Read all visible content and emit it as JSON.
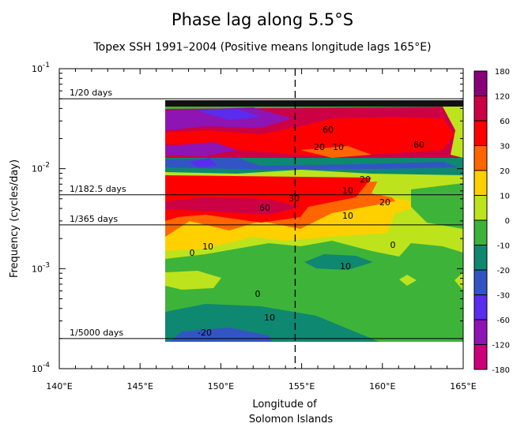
{
  "chart_data": {
    "type": "heatmap",
    "title": "Phase lag along 5.5°S",
    "subtitle": "Topex SSH 1991–2004 (Positive means longitude lags 165°E)",
    "xlabel": "Longitude of",
    "xlabel2": "Solomon Islands",
    "ylabel": "Frequency (cycles/day)",
    "xlim": [
      140,
      165
    ],
    "ylim": [
      0.0001,
      0.1
    ],
    "yscale": "log",
    "x_ticks": [
      "140°E",
      "145°E",
      "150°E",
      "155°E",
      "160°E",
      "165°E"
    ],
    "y_ticks": [
      {
        "base": "10",
        "exp": "-1"
      },
      {
        "base": "10",
        "exp": "-2"
      },
      {
        "base": "10",
        "exp": "-3"
      },
      {
        "base": "10",
        "exp": "-4"
      }
    ],
    "data_x_range": [
      146.6,
      165
    ],
    "data_y_range": [
      0.0002,
      0.05
    ],
    "reference_lines": [
      {
        "label": "1/20 days",
        "frequency": 0.05
      },
      {
        "label": "1/182.5 days",
        "frequency": 0.00548
      },
      {
        "label": "1/365 days",
        "frequency": 0.00274
      },
      {
        "label": "1/5000 days",
        "frequency": 0.0002
      }
    ],
    "vertical_marker_longitude": 154.6,
    "colorbar": {
      "levels": [
        "-180",
        "-120",
        "-60",
        "-30",
        "-20",
        "-10",
        "0",
        "10",
        "20",
        "30",
        "60",
        "120",
        "180"
      ],
      "colors": [
        "#cc0077",
        "#8e14b4",
        "#5a2cf0",
        "#3355c4",
        "#0e8870",
        "#3db33a",
        "#bde31c",
        "#ffd000",
        "#ff6600",
        "#ff0000",
        "#cc0044",
        "#880077"
      ]
    },
    "contour_labels": [
      "60",
      "60",
      "20",
      "10",
      "10",
      "20",
      "20",
      "30",
      "60",
      "10",
      "10",
      "0",
      "0",
      "10",
      "0",
      "10",
      "-20"
    ]
  }
}
